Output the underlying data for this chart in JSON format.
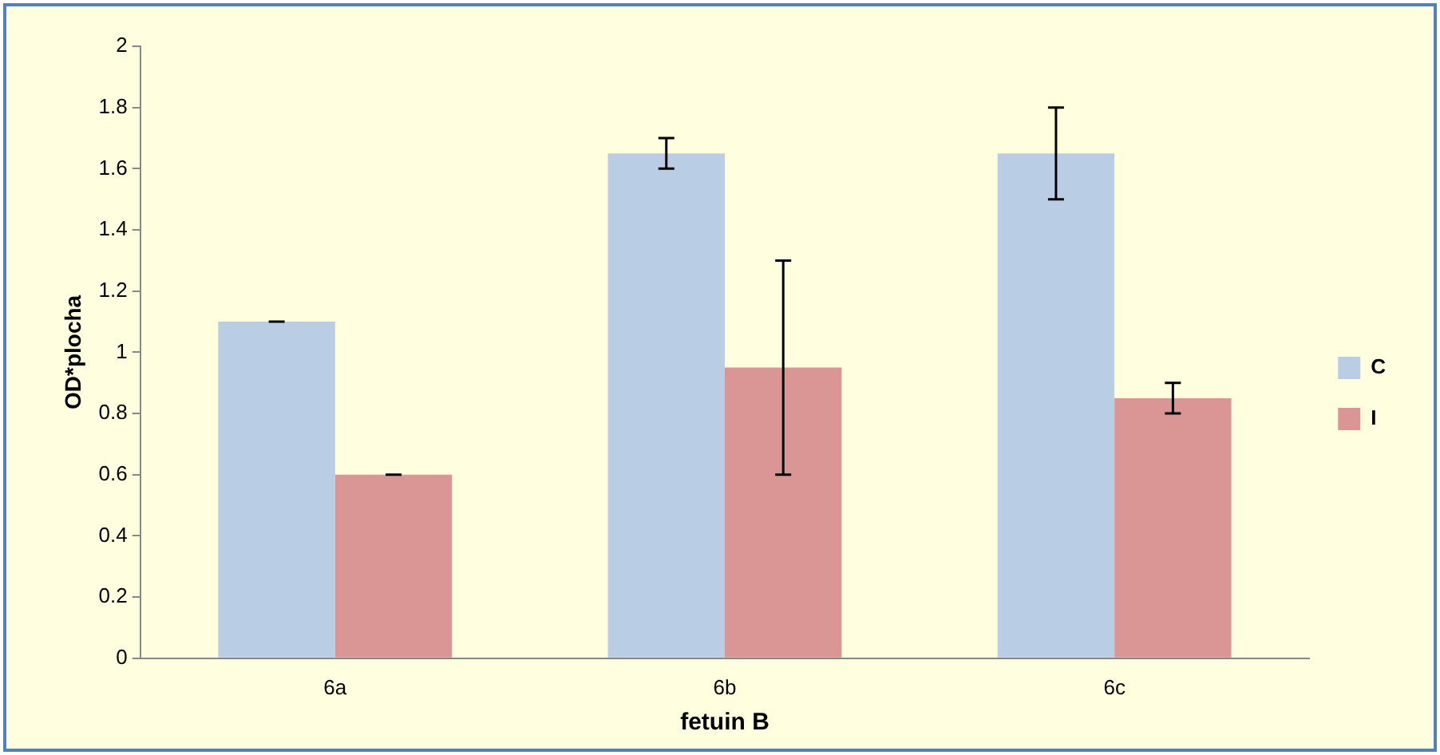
{
  "chart_data": {
    "type": "bar",
    "xlabel": "fetuin B",
    "ylabel": "OD*plocha",
    "categories": [
      "6a",
      "6b",
      "6c"
    ],
    "series": [
      {
        "name": "C",
        "color": "#b9cde5",
        "values": [
          1.1,
          1.65,
          1.65
        ],
        "errors": [
          0,
          0.05,
          0.15
        ]
      },
      {
        "name": "I",
        "color": "#d99694",
        "values": [
          0.6,
          0.95,
          0.85
        ],
        "errors": [
          0,
          0.35,
          0.05
        ]
      }
    ],
    "ylim": [
      0,
      2
    ],
    "yticks": [
      0,
      0.2,
      0.4,
      0.6,
      0.8,
      1,
      1.2,
      1.4,
      1.6,
      1.8,
      2
    ],
    "grid": false,
    "legend": "right"
  }
}
